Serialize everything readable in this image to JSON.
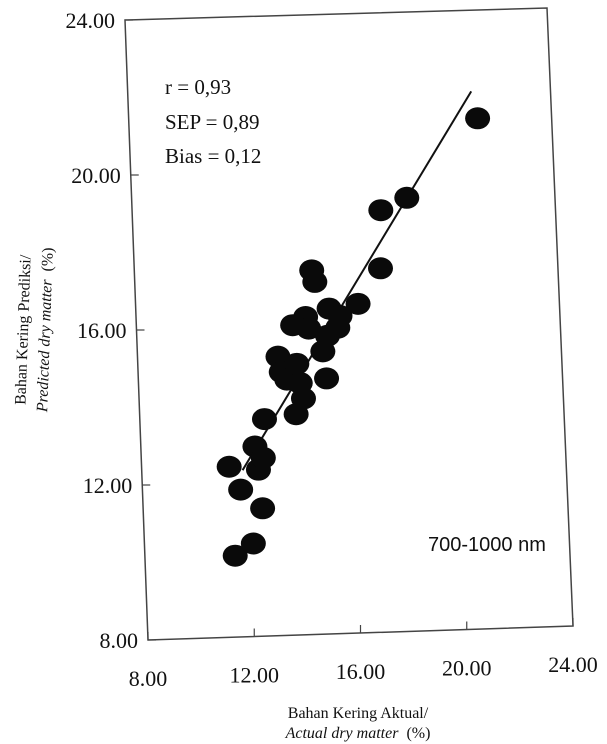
{
  "chart_data": {
    "type": "scatter",
    "xlabel": "Bahan Kering Aktual/",
    "xlabel_en": "Actual dry matter",
    "xlabel_unit": "(%)",
    "ylabel": "Bahan Kering Prediksi/",
    "ylabel_en": "Predicted dry matter",
    "ylabel_unit": "(%)",
    "xlim": [
      8,
      24
    ],
    "ylim": [
      8,
      24
    ],
    "x_ticks": [
      "8.00",
      "12.00",
      "16.00",
      "20.00",
      "24.00"
    ],
    "y_ticks": [
      "8.00",
      "12.00",
      "16.00",
      "20.00",
      "24.00"
    ],
    "annotations": {
      "r": "r = 0,93",
      "sep": "SEP = 0,89",
      "bias": "Bias = 0,12",
      "range": "700-1000 nm"
    },
    "grid": false,
    "fit_line": {
      "x": [
        11.8,
        21.0
      ],
      "y": [
        12.3,
        21.9
      ]
    },
    "points": [
      {
        "x": 11.4,
        "y": 10.1
      },
      {
        "x": 11.7,
        "y": 11.8
      },
      {
        "x": 11.3,
        "y": 12.4
      },
      {
        "x": 12.1,
        "y": 10.4
      },
      {
        "x": 12.5,
        "y": 11.3
      },
      {
        "x": 12.4,
        "y": 12.3
      },
      {
        "x": 12.3,
        "y": 12.9
      },
      {
        "x": 12.6,
        "y": 12.6
      },
      {
        "x": 12.7,
        "y": 13.6
      },
      {
        "x": 13.3,
        "y": 15.2
      },
      {
        "x": 13.4,
        "y": 14.8
      },
      {
        "x": 13.6,
        "y": 14.6
      },
      {
        "x": 13.9,
        "y": 13.7
      },
      {
        "x": 14.1,
        "y": 14.5
      },
      {
        "x": 14.0,
        "y": 15.0
      },
      {
        "x": 14.2,
        "y": 14.1
      },
      {
        "x": 13.9,
        "y": 16.0
      },
      {
        "x": 14.4,
        "y": 16.2
      },
      {
        "x": 14.5,
        "y": 15.9
      },
      {
        "x": 14.7,
        "y": 17.4
      },
      {
        "x": 14.8,
        "y": 17.1
      },
      {
        "x": 15.0,
        "y": 15.3
      },
      {
        "x": 15.1,
        "y": 14.6
      },
      {
        "x": 15.2,
        "y": 15.7
      },
      {
        "x": 15.3,
        "y": 16.4
      },
      {
        "x": 15.6,
        "y": 15.9
      },
      {
        "x": 15.7,
        "y": 16.2
      },
      {
        "x": 16.4,
        "y": 16.5
      },
      {
        "x": 17.3,
        "y": 17.4
      },
      {
        "x": 17.4,
        "y": 18.9
      },
      {
        "x": 18.4,
        "y": 19.2
      },
      {
        "x": 21.2,
        "y": 21.2
      }
    ]
  }
}
